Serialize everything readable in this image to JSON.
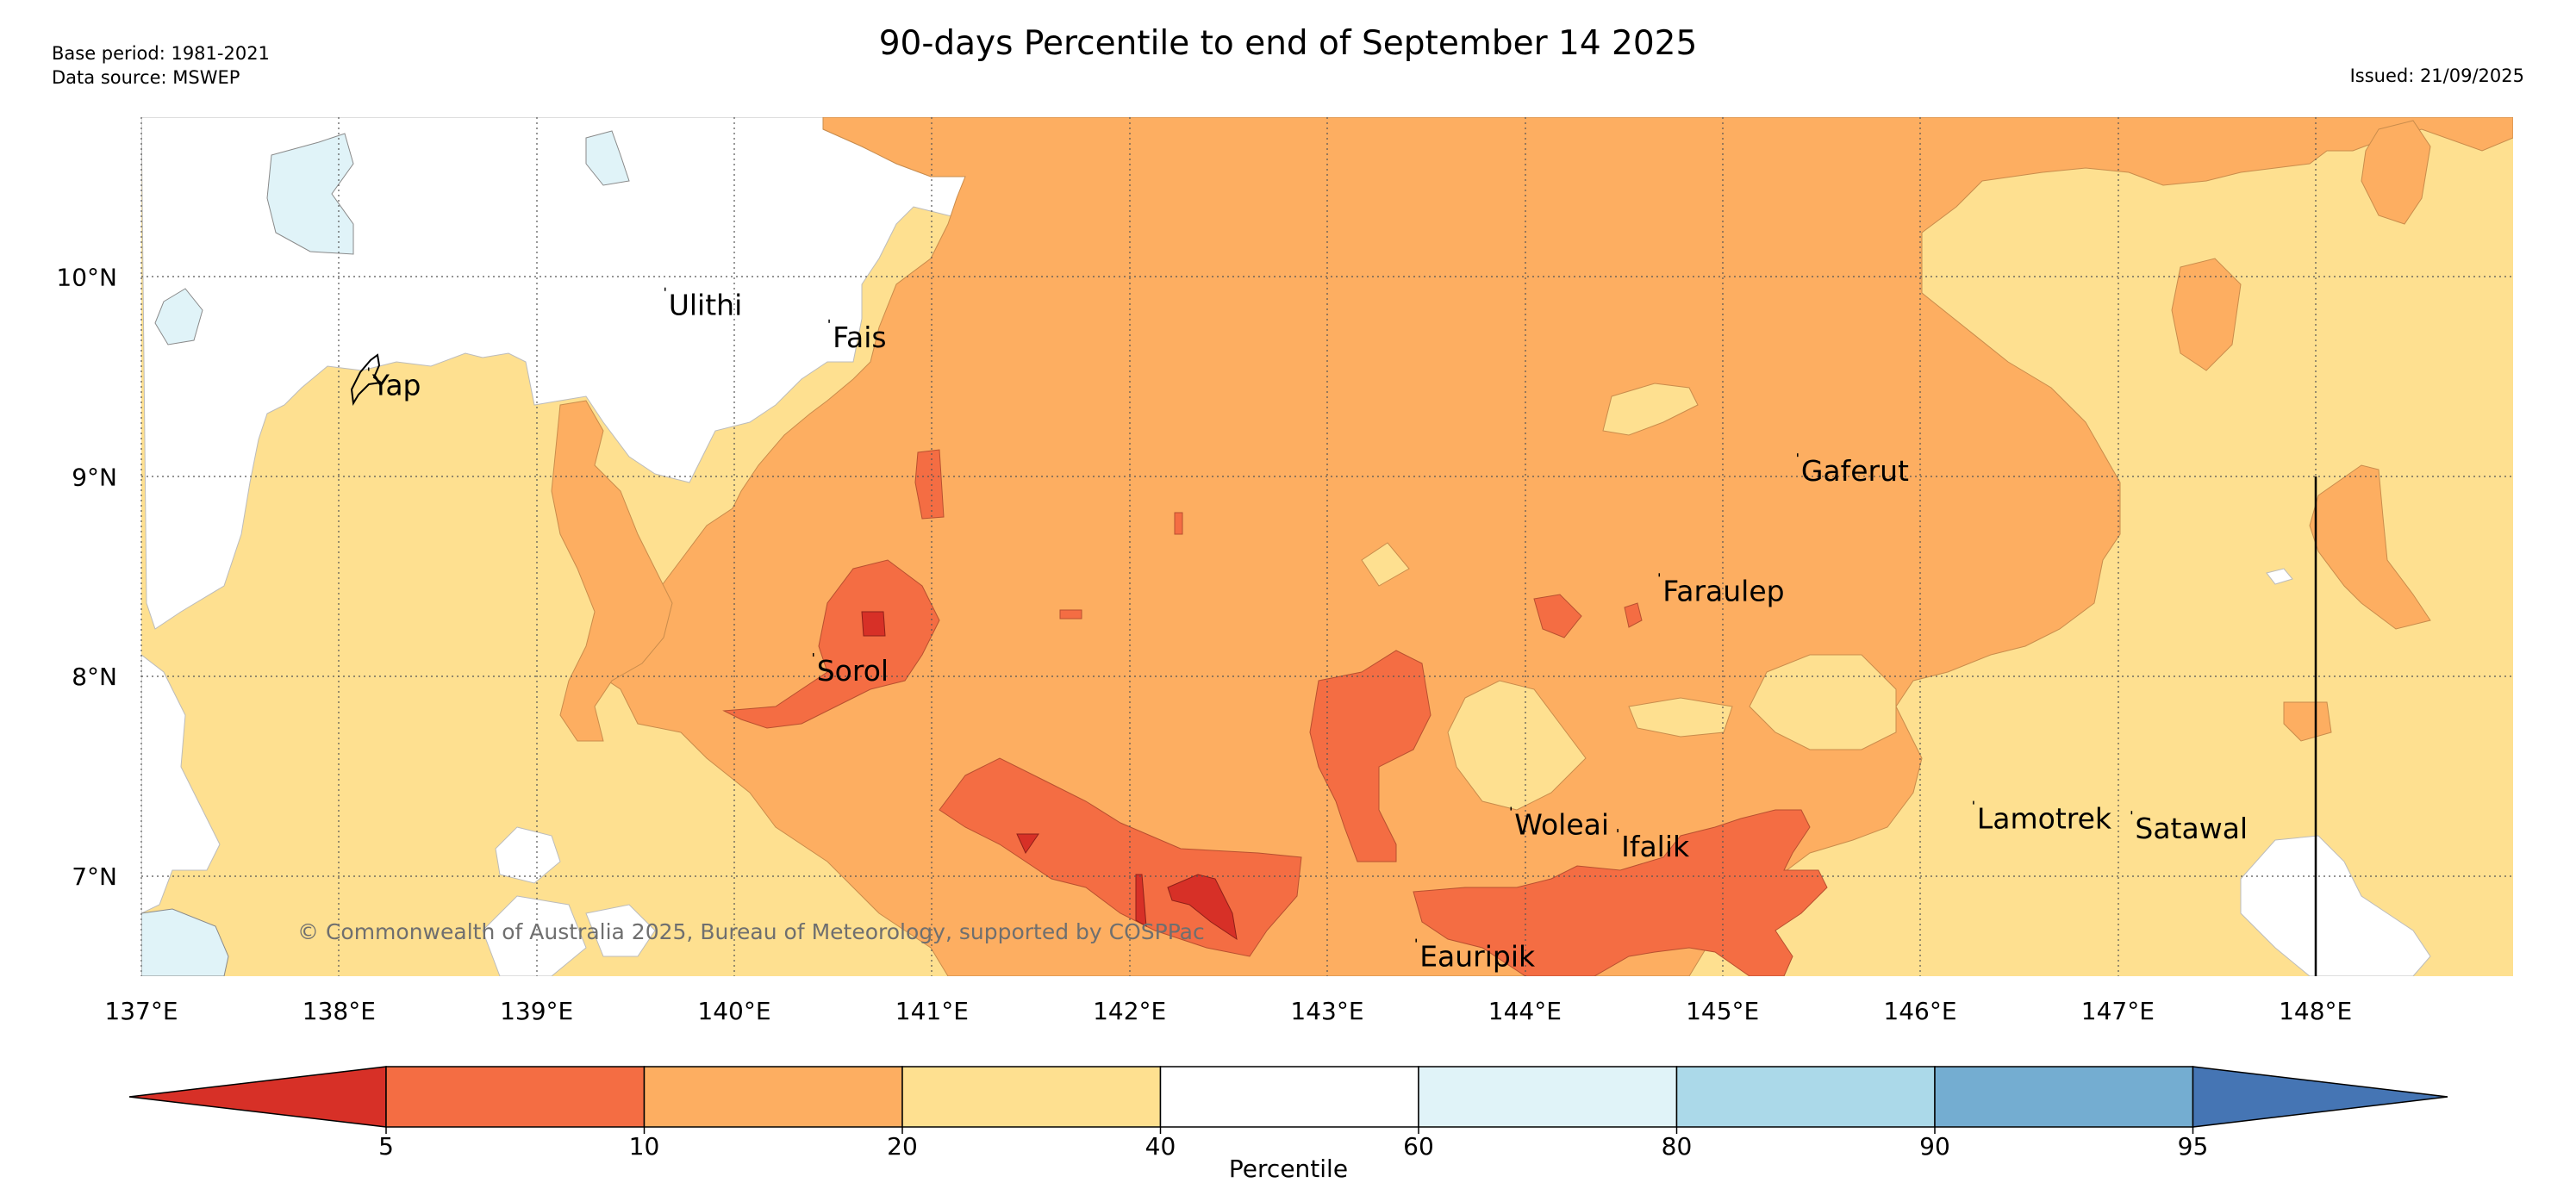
{
  "header": {
    "base_period": "Base period: 1981-2021",
    "data_source": "Data source: MSWEP",
    "title": "90-days Percentile to end of September 14 2025",
    "issued": "Issued: 21/09/2025"
  },
  "map": {
    "extent": {
      "lon_min": 137.0,
      "lon_max": 149.0,
      "lat_min": 6.5,
      "lat_max": 10.8
    },
    "lon_ticks": [
      {
        "value": 137,
        "label": "137°E"
      },
      {
        "value": 138,
        "label": "138°E"
      },
      {
        "value": 139,
        "label": "139°E"
      },
      {
        "value": 140,
        "label": "140°E"
      },
      {
        "value": 141,
        "label": "141°E"
      },
      {
        "value": 142,
        "label": "142°E"
      },
      {
        "value": 143,
        "label": "143°E"
      },
      {
        "value": 144,
        "label": "144°E"
      },
      {
        "value": 145,
        "label": "145°E"
      },
      {
        "value": 146,
        "label": "146°E"
      },
      {
        "value": 147,
        "label": "147°E"
      },
      {
        "value": 148,
        "label": "148°E"
      }
    ],
    "lat_ticks": [
      {
        "value": 10,
        "label": "10°N"
      },
      {
        "value": 9,
        "label": "9°N"
      },
      {
        "value": 8,
        "label": "8°N"
      },
      {
        "value": 7,
        "label": "7°N"
      }
    ],
    "places": [
      {
        "name": "Ulithi",
        "lon": 139.65,
        "lat": 9.93
      },
      {
        "name": "Fais",
        "lon": 140.48,
        "lat": 9.77
      },
      {
        "name": "Yap",
        "lon": 138.15,
        "lat": 9.53
      },
      {
        "name": "Gaferut",
        "lon": 145.38,
        "lat": 9.1
      },
      {
        "name": "Faraulep",
        "lon": 144.68,
        "lat": 8.5
      },
      {
        "name": "Sorol",
        "lon": 140.4,
        "lat": 8.1
      },
      {
        "name": "Woleai",
        "lon": 143.93,
        "lat": 7.33
      },
      {
        "name": "Ifalik",
        "lon": 144.47,
        "lat": 7.22
      },
      {
        "name": "Lamotrek",
        "lon": 146.27,
        "lat": 7.36
      },
      {
        "name": "Satawal",
        "lon": 147.07,
        "lat": 7.31
      },
      {
        "name": "Eauripik",
        "lon": 143.45,
        "lat": 6.67
      }
    ],
    "copyright": "© Commonwealth of Australia 2025, Bureau of Meteorology, supported by COSPPac"
  },
  "colorbar": {
    "label": "Percentile",
    "boundaries": [
      5,
      10,
      20,
      40,
      60,
      80,
      90,
      95
    ],
    "colors": [
      "#d73027",
      "#f46d43",
      "#fdae61",
      "#fee090",
      "#ffffff",
      "#e0f3f8",
      "#abd9e9",
      "#74add1",
      "#4575b4"
    ]
  }
}
